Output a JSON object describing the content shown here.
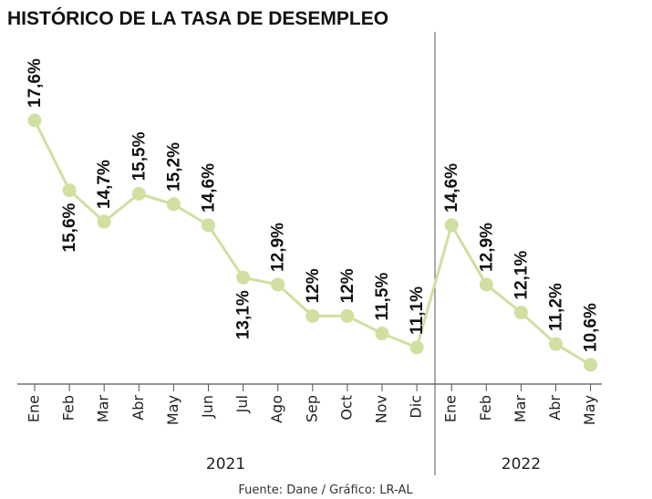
{
  "chart_data": {
    "type": "line",
    "title": "HISTÓRICO DE LA TASA DE DESEMPLEO",
    "categories": [
      "Ene",
      "Feb",
      "Mar",
      "Abr",
      "May",
      "Jun",
      "Jul",
      "Ago",
      "Sep",
      "Oct",
      "Nov",
      "Dic",
      "Ene",
      "Feb",
      "Mar",
      "Abr",
      "May"
    ],
    "values": [
      17.6,
      15.6,
      14.7,
      15.5,
      15.2,
      14.6,
      13.1,
      12.9,
      12,
      12,
      11.5,
      11.1,
      14.6,
      12.9,
      12.1,
      11.2,
      10.6
    ],
    "data_labels": [
      "17,6%",
      "15,6%",
      "14,7%",
      "15,5%",
      "15,2%",
      "14,6%",
      "13,1%",
      "12,9%",
      "12%",
      "12%",
      "11,5%",
      "11,1%",
      "14,6%",
      "12,9%",
      "12,1%",
      "11,2%",
      "10,6%"
    ],
    "label_position": [
      "above",
      "below",
      "above",
      "above",
      "above",
      "above",
      "below",
      "above",
      "above",
      "above",
      "above",
      "above",
      "above",
      "above",
      "above",
      "above",
      "above"
    ],
    "years": [
      {
        "label": "2021",
        "start_index": 0,
        "end_index": 11
      },
      {
        "label": "2022",
        "start_index": 12,
        "end_index": 16
      }
    ],
    "source": "Fuente: Dane / Gráfico: LR-AL",
    "ylim": [
      10.0,
      18.4
    ],
    "grid": false,
    "colors": {
      "line": "#cfe0a0",
      "marker": "#cfe0a0",
      "text": "#111111",
      "axis": "#555555"
    }
  }
}
